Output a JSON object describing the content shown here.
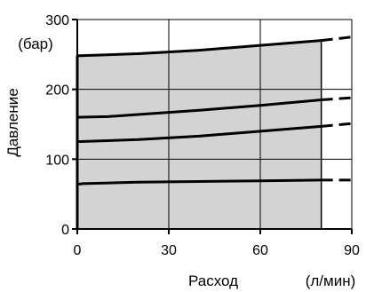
{
  "chart_data": {
    "type": "area",
    "xlabel": "Расход",
    "xunit": "(л/мин)",
    "ylabel": "Давление",
    "yunit": "(бар)",
    "xlim": [
      0,
      90
    ],
    "ylim": [
      0,
      300
    ],
    "xticks": [
      0,
      30,
      60,
      90
    ],
    "yticks": [
      0,
      100,
      200,
      300
    ],
    "tick_labels": {
      "x": [
        "0",
        "30",
        "60",
        "90"
      ],
      "y": [
        "0",
        "100",
        "200",
        "300"
      ]
    },
    "grid": true,
    "shaded_region": {
      "x_range": [
        0,
        80
      ],
      "y_range": [
        0,
        270
      ],
      "color": "#d3d3d3"
    },
    "series": [
      {
        "x": [
          0,
          20,
          40,
          60,
          80,
          90
        ],
        "y": [
          248,
          251,
          256,
          263,
          270,
          275
        ],
        "solid_until": 80
      },
      {
        "x": [
          0,
          10,
          20,
          40,
          60,
          80,
          90
        ],
        "y": [
          160,
          161,
          164,
          170,
          177,
          185,
          188
        ],
        "solid_until": 80
      },
      {
        "x": [
          0,
          20,
          40,
          60,
          80,
          90
        ],
        "y": [
          125,
          128,
          133,
          140,
          147,
          151
        ],
        "solid_until": 80
      },
      {
        "x": [
          0,
          2,
          20,
          40,
          60,
          80,
          90
        ],
        "y": [
          64,
          65,
          67,
          68,
          69,
          70,
          70
        ],
        "solid_until": 80
      }
    ],
    "vertical_line": {
      "x": 0,
      "y_from": 0,
      "y_to": 248
    },
    "colors": {
      "line": "#000000",
      "grid": "#000000",
      "fill": "#d3d3d3"
    }
  }
}
